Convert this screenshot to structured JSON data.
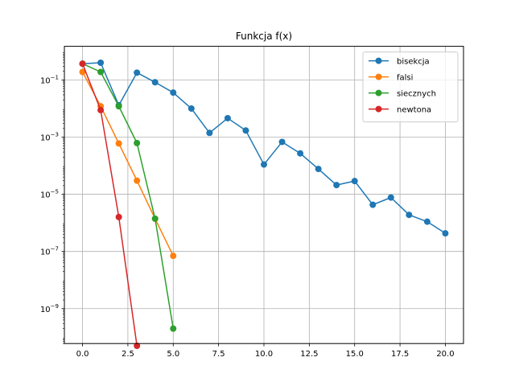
{
  "chart_data": {
    "type": "line",
    "title": "Funkcja f(x)",
    "xlabel": "",
    "ylabel": "",
    "yscale": "log",
    "xlim": [
      -1.0,
      21.0
    ],
    "ylim": [
      6e-11,
      1.5
    ],
    "grid": true,
    "legend_position": "top-right",
    "x_ticks": [
      {
        "value": 0.0,
        "label": "0.0"
      },
      {
        "value": 2.5,
        "label": "2.5"
      },
      {
        "value": 5.0,
        "label": "5.0"
      },
      {
        "value": 7.5,
        "label": "7.5"
      },
      {
        "value": 10.0,
        "label": "10.0"
      },
      {
        "value": 12.5,
        "label": "12.5"
      },
      {
        "value": 15.0,
        "label": "15.0"
      },
      {
        "value": 17.5,
        "label": "17.5"
      },
      {
        "value": 20.0,
        "label": "20.0"
      }
    ],
    "y_ticks": [
      {
        "value": 1e-09,
        "base": "10",
        "exp": "−9"
      },
      {
        "value": 1e-07,
        "base": "10",
        "exp": "−7"
      },
      {
        "value": 1e-05,
        "base": "10",
        "exp": "−5"
      },
      {
        "value": 0.001,
        "base": "10",
        "exp": "−3"
      },
      {
        "value": 0.1,
        "base": "10",
        "exp": "−1"
      }
    ],
    "series": [
      {
        "name": "bisekcja",
        "color": "#1f77b4",
        "x": [
          0,
          1,
          2,
          3,
          4,
          5,
          6,
          7,
          8,
          9,
          10,
          11,
          12,
          13,
          14,
          15,
          16,
          17,
          18,
          19,
          20
        ],
        "y": [
          0.37,
          0.4,
          0.013,
          0.18,
          0.083,
          0.036,
          0.01,
          0.0014,
          0.0046,
          0.0017,
          0.00011,
          0.00068,
          0.00027,
          7.7e-05,
          2.1e-05,
          2.9e-05,
          4.3e-06,
          7.7e-06,
          1.9e-06,
          1.1e-06,
          4.3e-07
        ]
      },
      {
        "name": "falsi",
        "color": "#ff7f0e",
        "x": [
          0,
          1,
          2,
          3,
          4,
          5
        ],
        "y": [
          0.19,
          0.012,
          0.0006,
          3e-05,
          1.4e-06,
          7e-08
        ]
      },
      {
        "name": "siecznych",
        "color": "#2ca02c",
        "x": [
          0,
          1,
          2,
          3,
          4,
          5
        ],
        "y": [
          0.37,
          0.19,
          0.012,
          0.00062,
          1.4e-06,
          2e-10
        ]
      },
      {
        "name": "newtona",
        "color": "#d62728",
        "x": [
          0,
          1,
          2,
          3
        ],
        "y": [
          0.37,
          0.0088,
          1.6e-06,
          5e-11
        ]
      }
    ]
  }
}
